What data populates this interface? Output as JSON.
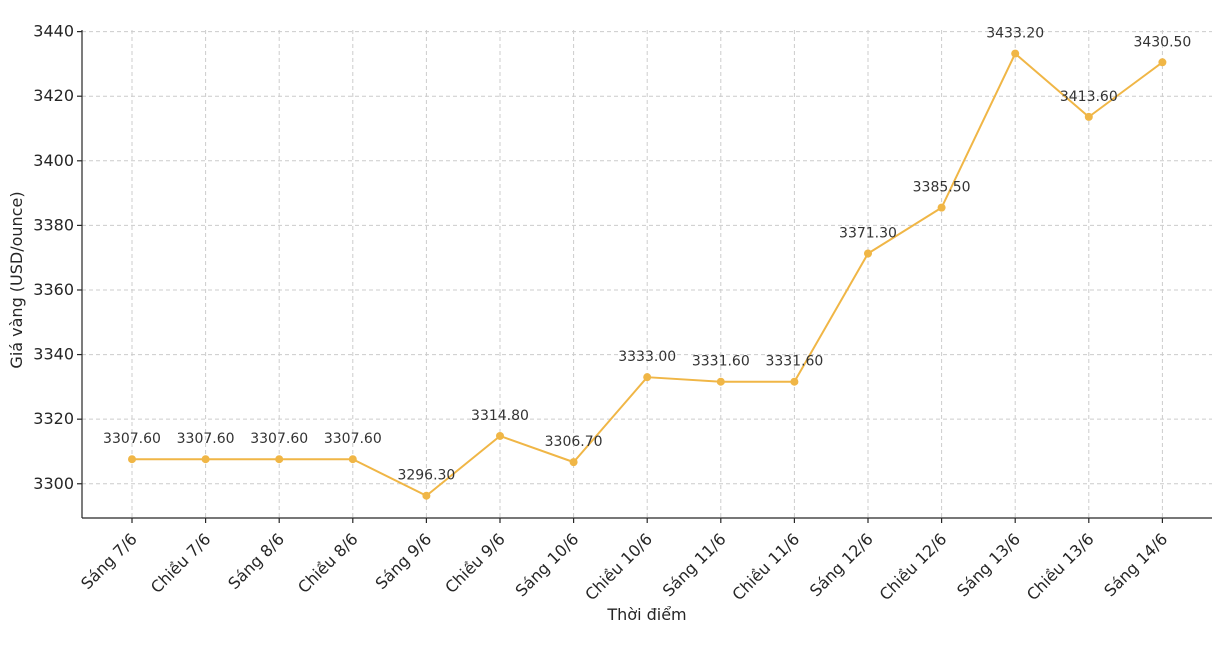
{
  "chart_data": {
    "type": "line",
    "xlabel": "Thời điểm",
    "ylabel": "Giá vàng (USD/ounce)",
    "categories": [
      "Sáng 7/6",
      "Chiều 7/6",
      "Sáng 8/6",
      "Chiều 8/6",
      "Sáng 9/6",
      "Chiều 9/6",
      "Sáng 10/6",
      "Chiều 10/6",
      "Sáng 11/6",
      "Chiều 11/6",
      "Sáng 12/6",
      "Chiều 12/6",
      "Sáng 13/6",
      "Chiều 13/6",
      "Sáng 14/6"
    ],
    "values": [
      3307.6,
      3307.6,
      3307.6,
      3307.6,
      3296.3,
      3314.8,
      3306.7,
      3333.0,
      3331.6,
      3331.6,
      3371.3,
      3385.5,
      3433.2,
      3413.6,
      3430.5
    ],
    "data_labels": [
      "3307.60",
      "3307.60",
      "3307.60",
      "3307.60",
      "3296.30",
      "3314.80",
      "3306.70",
      "3333.00",
      "3331.60",
      "3331.60",
      "3371.30",
      "3385.50",
      "3433.20",
      "3413.60",
      "3430.50"
    ],
    "yticks": [
      3300,
      3320,
      3340,
      3360,
      3380,
      3400,
      3420,
      3440
    ],
    "ylim": [
      3289.4,
      3440.5
    ],
    "grid": true,
    "line_color": "#F0B646",
    "marker_color": "#F0B646"
  }
}
